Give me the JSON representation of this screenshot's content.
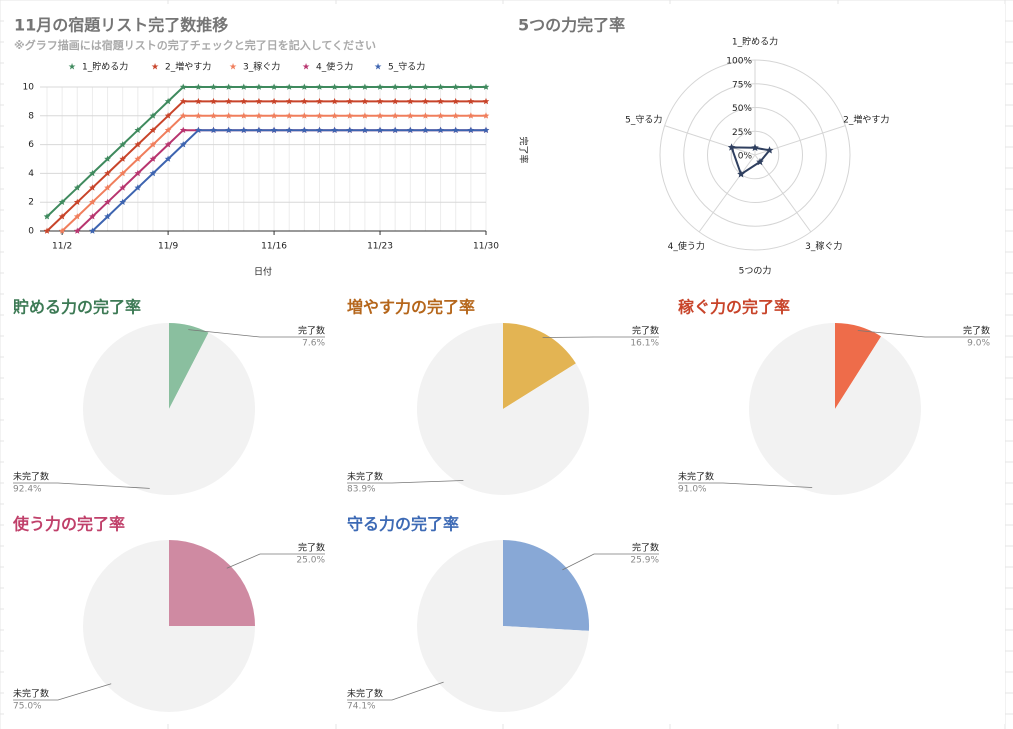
{
  "chart_data": [
    {
      "type": "line",
      "title": "11月の宿題リスト完了数推移",
      "subtitle": "※グラフ描画には宿題リストの完了チェックと完了日を記入してください",
      "x_label": "日付",
      "categories": [
        null,
        "11/2",
        null,
        null,
        null,
        null,
        null,
        null,
        "11/9",
        null,
        null,
        null,
        null,
        null,
        null,
        "11/16",
        null,
        null,
        null,
        null,
        null,
        null,
        "11/23",
        null,
        null,
        null,
        null,
        null,
        null,
        "11/30"
      ],
      "ylim": [
        0,
        10
      ],
      "yticks": [
        0,
        2,
        4,
        6,
        8,
        10
      ],
      "grid": true,
      "series": [
        {
          "name": "1_貯める力",
          "color": "#3f8a5e",
          "values": [
            1,
            2,
            3,
            4,
            5,
            6,
            7,
            8,
            9,
            10,
            10,
            10,
            10,
            10,
            10,
            10,
            10,
            10,
            10,
            10,
            10,
            10,
            10,
            10,
            10,
            10,
            10,
            10,
            10,
            10
          ]
        },
        {
          "name": "2_増やす力",
          "color": "#c8442a",
          "values": [
            0,
            1,
            2,
            3,
            4,
            5,
            6,
            7,
            8,
            9,
            9,
            9,
            9,
            9,
            9,
            9,
            9,
            9,
            9,
            9,
            9,
            9,
            9,
            9,
            9,
            9,
            9,
            9,
            9,
            9
          ]
        },
        {
          "name": "3_稼ぐ力",
          "color": "#f07e5c",
          "values": [
            null,
            0,
            1,
            2,
            3,
            4,
            5,
            6,
            7,
            8,
            8,
            8,
            8,
            8,
            8,
            8,
            8,
            8,
            8,
            8,
            8,
            8,
            8,
            8,
            8,
            8,
            8,
            8,
            8,
            8
          ]
        },
        {
          "name": "4_使う力",
          "color": "#b8356f",
          "values": [
            null,
            null,
            0,
            1,
            2,
            3,
            4,
            5,
            6,
            7,
            7,
            7,
            7,
            7,
            7,
            7,
            7,
            7,
            7,
            7,
            7,
            7,
            7,
            7,
            7,
            7,
            7,
            7,
            7,
            7
          ]
        },
        {
          "name": "5_守る力",
          "color": "#3d64b0",
          "values": [
            null,
            null,
            null,
            0,
            1,
            2,
            3,
            4,
            5,
            6,
            7,
            7,
            7,
            7,
            7,
            7,
            7,
            7,
            7,
            7,
            7,
            7,
            7,
            7,
            7,
            7,
            7,
            7,
            7,
            7
          ]
        }
      ]
    },
    {
      "type": "radar",
      "title": "5つの力完了率",
      "x_label": "5つの力",
      "y_label": "完了率",
      "categories": [
        "1_貯める力",
        "2_増やす力",
        "3_稼ぐ力",
        "4_使う力",
        "5_守る力"
      ],
      "values": [
        7.6,
        16.1,
        9.0,
        25.0,
        25.9
      ],
      "color": "#2f3f5f",
      "ylim": [
        0,
        100
      ],
      "yticks": [
        {
          "value": 0,
          "label": "0%"
        },
        {
          "value": 25,
          "label": "25%"
        },
        {
          "value": 50,
          "label": "50%"
        },
        {
          "value": 75,
          "label": "75%"
        },
        {
          "value": 100,
          "label": "100%"
        }
      ]
    },
    {
      "type": "pie",
      "title": "貯める力の完了率",
      "title_color": "#3d7a55",
      "categories": [
        "完了数",
        "未完了数"
      ],
      "values": [
        7.6,
        92.4
      ],
      "value_labels": [
        "7.6%",
        "92.4%"
      ],
      "colors": [
        "#8abf9f",
        "#f2f2f2"
      ]
    },
    {
      "type": "pie",
      "title": "増やす力の完了率",
      "title_color": "#b5661b",
      "categories": [
        "完了数",
        "未完了数"
      ],
      "values": [
        16.1,
        83.9
      ],
      "value_labels": [
        "16.1%",
        "83.9%"
      ],
      "colors": [
        "#e3b453",
        "#f2f2f2"
      ]
    },
    {
      "type": "pie",
      "title": "稼ぐ力の完了率",
      "title_color": "#c8442a",
      "categories": [
        "完了数",
        "未完了数"
      ],
      "values": [
        9.0,
        91.0
      ],
      "value_labels": [
        "9.0%",
        "91.0%"
      ],
      "colors": [
        "#ee6c4a",
        "#f2f2f2"
      ]
    },
    {
      "type": "pie",
      "title": "使う力の完了率",
      "title_color": "#c0406a",
      "categories": [
        "完了数",
        "未完了数"
      ],
      "values": [
        25.0,
        75.0
      ],
      "value_labels": [
        "25.0%",
        "75.0%"
      ],
      "colors": [
        "#cf8aa2",
        "#f2f2f2"
      ]
    },
    {
      "type": "pie",
      "title": "守る力の完了率",
      "title_color": "#3d6ab5",
      "categories": [
        "完了数",
        "未完了数"
      ],
      "values": [
        25.9,
        74.1
      ],
      "value_labels": [
        "25.9%",
        "74.1%"
      ],
      "colors": [
        "#88a8d6",
        "#f2f2f2"
      ]
    }
  ]
}
